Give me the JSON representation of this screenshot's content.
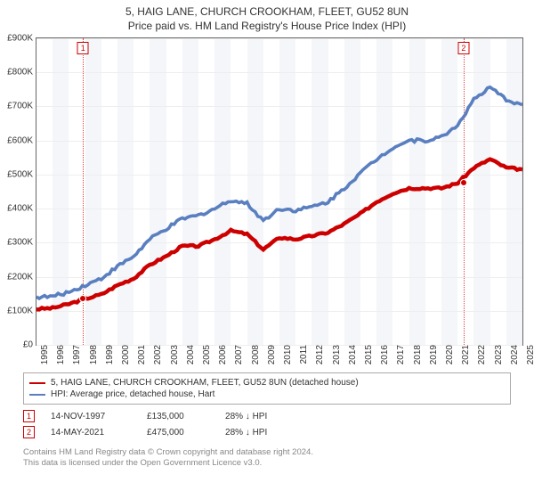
{
  "title_line1": "5, HAIG LANE, CHURCH CROOKHAM, FLEET, GU52 8UN",
  "title_line2": "Price paid vs. HM Land Registry's House Price Index (HPI)",
  "chart": {
    "type": "line",
    "background_color": "#ffffff",
    "band_color": "#f4f6f9",
    "grid_color": "#eeeeee",
    "border_color": "#666666",
    "ylim": [
      0,
      900000
    ],
    "ytick_step": 100000,
    "yticks": [
      "£0",
      "£100K",
      "£200K",
      "£300K",
      "£400K",
      "£500K",
      "£600K",
      "£700K",
      "£800K",
      "£900K"
    ],
    "x_years": [
      1995,
      1996,
      1997,
      1998,
      1999,
      2000,
      2001,
      2002,
      2003,
      2004,
      2005,
      2006,
      2007,
      2008,
      2009,
      2010,
      2011,
      2012,
      2013,
      2014,
      2015,
      2016,
      2017,
      2018,
      2019,
      2020,
      2021,
      2022,
      2023,
      2024,
      2025
    ],
    "series": [
      {
        "id": "property",
        "label": "5, HAIG LANE, CHURCH CROOKHAM, FLEET, GU52 8UN (detached house)",
        "color": "#cc0000",
        "line_width": 1.5,
        "values": [
          105,
          108,
          120,
          135,
          148,
          175,
          195,
          235,
          260,
          290,
          290,
          310,
          335,
          325,
          280,
          315,
          310,
          320,
          330,
          355,
          385,
          420,
          445,
          460,
          460,
          460,
          475,
          520,
          545,
          520,
          515
        ]
      },
      {
        "id": "hpi",
        "label": "HPI: Average price, detached house, Hart",
        "color": "#5a7fc0",
        "line_width": 1.2,
        "values": [
          140,
          142,
          155,
          175,
          195,
          230,
          260,
          310,
          340,
          370,
          380,
          400,
          425,
          415,
          365,
          400,
          395,
          405,
          420,
          460,
          505,
          545,
          580,
          600,
          600,
          610,
          645,
          720,
          755,
          720,
          705
        ]
      }
    ],
    "markers": [
      {
        "n": "1",
        "year": 1997.87,
        "value": 135,
        "line_color": "#e04040"
      },
      {
        "n": "2",
        "year": 2021.37,
        "value": 475,
        "line_color": "#e04040"
      }
    ]
  },
  "legend": {
    "rows": [
      {
        "color": "#cc0000",
        "label": "5, HAIG LANE, CHURCH CROOKHAM, FLEET, GU52 8UN (detached house)"
      },
      {
        "color": "#5a7fc0",
        "label": "HPI: Average price, detached house, Hart"
      }
    ]
  },
  "sales": [
    {
      "n": "1",
      "date": "14-NOV-1997",
      "price": "£135,000",
      "diff": "28% ↓ HPI"
    },
    {
      "n": "2",
      "date": "14-MAY-2021",
      "price": "£475,000",
      "diff": "28% ↓ HPI"
    }
  ],
  "footer_line1": "Contains HM Land Registry data © Crown copyright and database right 2024.",
  "footer_line2": "This data is licensed under the Open Government Licence v3.0."
}
